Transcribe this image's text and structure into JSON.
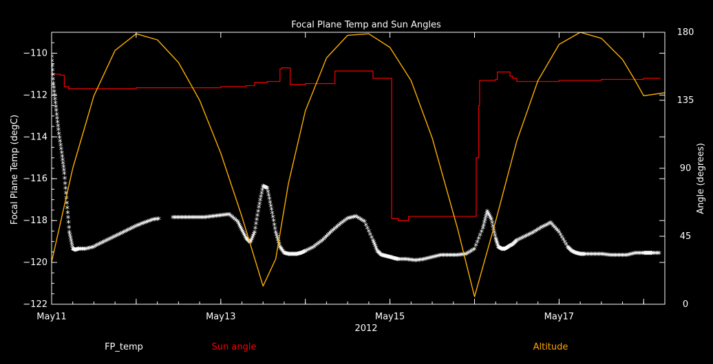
{
  "chart_data": {
    "type": "line",
    "title": "Focal Plane Temp and Sun Angles",
    "xlabel": "2012",
    "ylabel_left": "Focal Plane Temp (degC)",
    "ylabel_right": "Angle (degrees)",
    "xlim": [
      11.0,
      18.25
    ],
    "ylim_left": [
      -122,
      -109
    ],
    "ylim_right": [
      0,
      180
    ],
    "x_ticks": [
      11,
      12,
      13,
      14,
      15,
      16,
      17,
      18
    ],
    "x_tick_labels": [
      {
        "x": 11,
        "label": "May11"
      },
      {
        "x": 13,
        "label": "May13"
      },
      {
        "x": 15,
        "label": "May15"
      },
      {
        "x": 17,
        "label": "May17"
      }
    ],
    "y_ticks_left": [
      -122,
      -120,
      -118,
      -116,
      -114,
      -112,
      -110
    ],
    "y_ticks_right": [
      0,
      45,
      90,
      135,
      180
    ],
    "grid": false,
    "legend": [
      {
        "label": "FP_temp",
        "color": "#ffffff"
      },
      {
        "label": "Sun angle",
        "color": "#ff0000"
      },
      {
        "label": "Altitude",
        "color": "#ffa500"
      }
    ],
    "colors": {
      "background": "#000000",
      "axes": "#ffffff",
      "fp_temp": "#ffffff",
      "sun_angle": "#ff0000",
      "altitude": "#ffb000"
    },
    "series": [
      {
        "name": "FP_temp",
        "axis": "left",
        "style": "markers",
        "x": [
          11.0,
          11.02,
          11.05,
          11.08,
          11.12,
          11.15,
          11.18,
          11.21,
          11.25,
          11.28,
          11.32,
          11.4,
          11.5,
          11.6,
          11.7,
          11.8,
          11.9,
          12.0,
          12.1,
          12.2,
          12.3,
          12.4,
          12.5,
          12.6,
          12.7,
          12.8,
          12.9,
          13.0,
          13.1,
          13.2,
          13.25,
          13.3,
          13.35,
          13.4,
          13.45,
          13.5,
          13.55,
          13.6,
          13.65,
          13.7,
          13.75,
          13.8,
          13.85,
          13.9,
          13.95,
          14.0,
          14.1,
          14.2,
          14.3,
          14.4,
          14.5,
          14.6,
          14.7,
          14.8,
          14.85,
          14.9,
          14.95,
          15.0,
          15.05,
          15.1,
          15.2,
          15.3,
          15.4,
          15.5,
          15.6,
          15.7,
          15.8,
          15.9,
          16.0,
          16.1,
          16.15,
          16.2,
          16.25,
          16.28,
          16.32,
          16.36,
          16.4,
          16.45,
          16.5,
          16.6,
          16.7,
          16.8,
          16.9,
          17.0,
          17.1,
          17.15,
          17.2,
          17.25,
          17.3,
          17.4,
          17.5,
          17.6,
          17.7,
          17.8,
          17.9,
          18.0,
          18.05,
          18.1,
          18.2
        ],
        "y": [
          -110.2,
          -111.5,
          -112.6,
          -113.7,
          -114.8,
          -115.8,
          -117.2,
          -118.6,
          -119.4,
          -119.45,
          -119.4,
          -119.4,
          -119.3,
          -119.1,
          -118.9,
          -118.7,
          -118.5,
          -118.3,
          -118.15,
          -118.0,
          -117.95,
          -117.9,
          -117.9,
          -117.9,
          -117.9,
          -117.9,
          -117.85,
          -117.8,
          -117.75,
          -118.1,
          -118.5,
          -118.9,
          -119.1,
          -118.6,
          -117.4,
          -116.4,
          -116.5,
          -117.5,
          -118.6,
          -119.3,
          -119.6,
          -119.65,
          -119.65,
          -119.65,
          -119.6,
          -119.5,
          -119.3,
          -119.0,
          -118.6,
          -118.25,
          -117.95,
          -117.85,
          -118.1,
          -119.0,
          -119.5,
          -119.7,
          -119.75,
          -119.8,
          -119.85,
          -119.9,
          -119.9,
          -119.95,
          -119.9,
          -119.8,
          -119.7,
          -119.7,
          -119.7,
          -119.65,
          -119.4,
          -118.4,
          -117.6,
          -118.0,
          -118.9,
          -119.3,
          -119.4,
          -119.4,
          -119.3,
          -119.2,
          -119.0,
          -118.8,
          -118.6,
          -118.35,
          -118.15,
          -118.6,
          -119.3,
          -119.5,
          -119.6,
          -119.65,
          -119.65,
          -119.65,
          -119.65,
          -119.7,
          -119.7,
          -119.7,
          -119.6,
          -119.6,
          -119.6,
          -119.6,
          -119.6
        ]
      },
      {
        "name": "Sun angle",
        "axis": "left",
        "style": "step",
        "x": [
          11.0,
          11.1,
          11.15,
          11.2,
          12.0,
          13.0,
          13.3,
          13.4,
          13.55,
          13.7,
          13.72,
          13.82,
          14.0,
          14.1,
          14.15,
          14.35,
          14.36,
          14.75,
          14.8,
          15.0,
          15.02,
          15.1,
          15.15,
          15.22,
          15.3,
          15.5,
          15.8,
          16.0,
          16.02,
          16.05,
          16.06,
          16.25,
          16.27,
          16.4,
          16.42,
          16.45,
          16.5,
          16.6,
          17.0,
          17.5,
          18.0,
          18.1,
          18.2
        ],
        "y": [
          -111.0,
          -111.05,
          -111.6,
          -111.7,
          -111.65,
          -111.6,
          -111.55,
          -111.4,
          -111.35,
          -110.75,
          -110.7,
          -111.5,
          -111.45,
          -111.45,
          -111.45,
          -110.85,
          -110.85,
          -110.85,
          -111.2,
          -111.2,
          -117.9,
          -118.0,
          -118.0,
          -117.8,
          -117.8,
          -117.8,
          -117.8,
          -117.8,
          -115.0,
          -112.5,
          -111.3,
          -111.25,
          -110.9,
          -110.9,
          -111.1,
          -111.2,
          -111.35,
          -111.35,
          -111.3,
          -111.25,
          -111.2,
          -111.2,
          -111.2
        ]
      },
      {
        "name": "Altitude",
        "axis": "right",
        "style": "line",
        "x": [
          11.0,
          11.25,
          11.5,
          11.75,
          12.0,
          12.25,
          12.5,
          12.75,
          13.0,
          13.25,
          13.5,
          13.65,
          13.8,
          14.0,
          14.25,
          14.5,
          14.75,
          15.0,
          15.25,
          15.5,
          15.8,
          16.0,
          16.25,
          16.5,
          16.75,
          17.0,
          17.25,
          17.5,
          17.75,
          17.9,
          18.0,
          18.25
        ],
        "y": [
          28,
          90,
          138,
          168,
          179,
          175,
          160,
          135,
          100,
          58,
          12,
          30,
          80,
          128,
          163,
          178,
          179,
          170,
          148,
          110,
          50,
          5,
          55,
          108,
          148,
          172,
          180,
          176,
          162,
          148,
          138,
          140
        ]
      }
    ]
  }
}
